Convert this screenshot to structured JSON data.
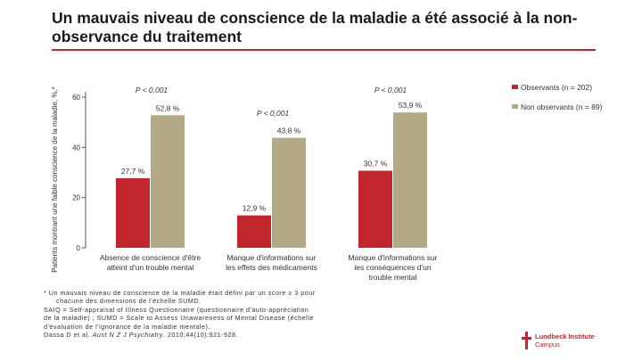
{
  "slide": {
    "title": "Un mauvais niveau de conscience de la maladie a été associé à la non-observance du traitement"
  },
  "chart_data": {
    "type": "bar",
    "title": "",
    "ylabel": "Patients montrant une faible conscience de la maladie, %,*",
    "xlabel": "",
    "ylim": [
      0,
      60
    ],
    "yticks": [
      0,
      20,
      40,
      60
    ],
    "ytick_labels": [
      "0",
      "20",
      "40",
      "60"
    ],
    "grid": false,
    "legend_position": "top-right",
    "categories": [
      "Absence de conscience d'être atteint d'un trouble mental",
      "Manque d'informations sur les effets des médicaments",
      "Manque d'informations sur les conséquences d'un trouble mental"
    ],
    "series": [
      {
        "name": "Observants (n = 202)",
        "color": "#c0262c",
        "values": [
          27.7,
          12.9,
          30.7
        ],
        "labels": [
          "27,7 %",
          "12,9 %",
          "30,7 %"
        ]
      },
      {
        "name": "Non observants (n = 89)",
        "color": "#b3a984",
        "values": [
          52.8,
          43.8,
          53.9
        ],
        "labels": [
          "52,8 %",
          "43,8 %",
          "53,9 %"
        ]
      }
    ],
    "annotations": [
      "P < 0,001",
      "P < 0,001",
      "P < 0,001"
    ]
  },
  "footnote": {
    "line1": "* Un mauvais niveau de conscience de la maladie était défini par un score ≥ 3 pour",
    "line2": "chacune des dimensions de l'échelle SUMD.",
    "line3": "SAIQ = Self-appraisal of Illness Questionnaire (questionnaire d'auto-appréciation",
    "line4": "de la maladie) ; SUMD = Scale to Assess Unawareness of Mental Disease (échelle",
    "line5": "d'évaluation de l'ignorance de la maladie mentale).",
    "ref_authors": "Dassa D et al. ",
    "ref_journal": "Aust N Z J Psychiatry",
    "ref_rest": ". 2010;44(10):921-928."
  },
  "logo": {
    "line1": "Lundbeck Institute",
    "line2": "Campus"
  }
}
